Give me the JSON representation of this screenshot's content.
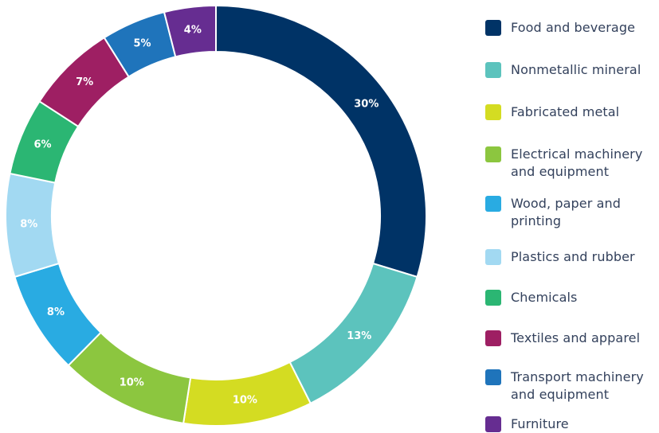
{
  "chart_data": {
    "type": "pie",
    "title": "",
    "categories": [
      "Food and beverage",
      "Nonmetallic mineral",
      "Fabricated metal",
      "Electrical machinery and equipment",
      "Wood, paper and printing",
      "Plastics and rubber",
      "Chemicals",
      "Textiles and apparel",
      "Transport machinery and equipment",
      "Furniture"
    ],
    "values": [
      30,
      13,
      10,
      10,
      8,
      8,
      6,
      7,
      5,
      4
    ],
    "labels": [
      "30%",
      "13%",
      "10%",
      "10%",
      "8%",
      "8%",
      "6%",
      "7%",
      "5%",
      "4%"
    ],
    "colors": [
      "#003366",
      "#5cc3bd",
      "#d4dc22",
      "#8cc63f",
      "#29abe2",
      "#a2d9f2",
      "#2bb673",
      "#9e1f63",
      "#1f74bb",
      "#662d91"
    ],
    "legend_position": "right"
  }
}
